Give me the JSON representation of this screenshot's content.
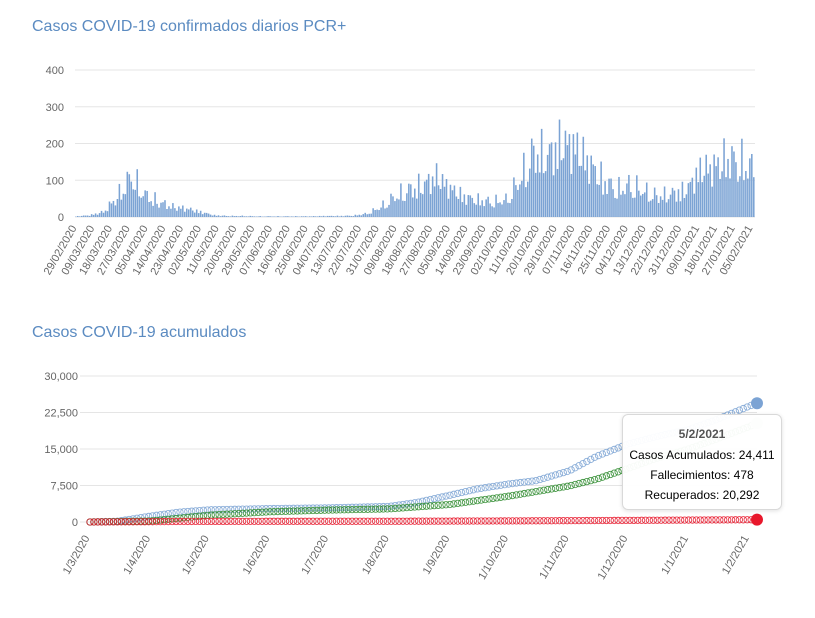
{
  "colors": {
    "daily_bars": "#7ba3d4",
    "total": "#7ba3d4",
    "deaths": "#e8172b",
    "recovered": "#2e8b2e",
    "grid": "#e5e5e5",
    "axis_text": "#666666",
    "title": "#5b8bc1"
  },
  "chart_data": [
    {
      "type": "bar",
      "title": "Casos COVID-19 confirmados diarios PCR+",
      "xlabel": "",
      "ylabel": "",
      "ylim": [
        0,
        400
      ],
      "yticks": [
        0,
        100,
        200,
        300,
        400
      ],
      "grid": true,
      "x_tick_labels": [
        "29/02/2020",
        "09/03/2020",
        "18/03/2020",
        "27/03/2020",
        "05/04/2020",
        "14/04/2020",
        "23/04/2020",
        "02/05/2020",
        "11/05/2020",
        "20/05/2020",
        "29/05/2020",
        "07/06/2020",
        "16/06/2020",
        "25/06/2020",
        "04/07/2020",
        "13/07/2020",
        "22/07/2020",
        "31/07/2020",
        "09/08/2020",
        "18/08/2020",
        "27/08/2020",
        "05/09/2020",
        "14/09/2020",
        "23/09/2020",
        "02/10/2020",
        "11/10/2020",
        "20/10/2020",
        "29/10/2020",
        "07/11/2020",
        "16/11/2020",
        "25/11/2020",
        "04/12/2020",
        "13/12/2020",
        "22/12/2020",
        "31/12/2020",
        "09/01/2021",
        "18/01/2021",
        "27/01/2021",
        "05/02/2021"
      ],
      "weekly_series": {
        "x_start": "29/02/2020",
        "x_end": "05/02/2021",
        "interval_days": 7,
        "values": [
          2,
          5,
          15,
          60,
          120,
          65,
          45,
          30,
          25,
          15,
          5,
          3,
          3,
          2,
          2,
          2,
          2,
          2,
          3,
          3,
          4,
          10,
          30,
          60,
          80,
          95,
          120,
          85,
          60,
          50,
          45,
          50,
          110,
          190,
          180,
          220,
          210,
          160,
          110,
          80,
          95,
          75,
          60,
          70,
          80,
          140,
          150,
          175,
          160,
          140
        ]
      }
    },
    {
      "type": "line",
      "title": "Casos COVID-19 acumulados",
      "xlabel": "",
      "ylabel": "",
      "ylim": [
        0,
        30000
      ],
      "yticks": [
        "0",
        "7,500",
        "15,000",
        "22,500",
        "30,000"
      ],
      "grid": true,
      "x_tick_labels": [
        "1/3/2020",
        "1/4/2020",
        "1/5/2020",
        "1/6/2020",
        "1/7/2020",
        "1/8/2020",
        "1/9/2020",
        "1/10/2020",
        "1/11/2020",
        "1/12/2020",
        "1/1/2021",
        "1/2/2021"
      ],
      "x_start": "1/3/2020",
      "x_end": "5/2/2021",
      "series": [
        {
          "name": "Casos Acumulados",
          "x": [
            "1/3/2020",
            "15/3/2020",
            "1/4/2020",
            "15/4/2020",
            "1/5/2020",
            "1/6/2020",
            "1/7/2020",
            "1/8/2020",
            "15/8/2020",
            "1/9/2020",
            "15/9/2020",
            "1/10/2020",
            "15/10/2020",
            "1/11/2020",
            "15/11/2020",
            "1/12/2020",
            "15/12/2020",
            "1/1/2021",
            "15/1/2021",
            "1/2/2021",
            "5/2/2021"
          ],
          "values": [
            0,
            150,
            1200,
            2000,
            2500,
            2750,
            2900,
            3200,
            4000,
            5500,
            6800,
            7800,
            8500,
            10500,
            13500,
            16000,
            17500,
            19000,
            21000,
            23800,
            24411
          ]
        },
        {
          "name": "Fallecimientos",
          "x": [
            "1/3/2020",
            "1/4/2020",
            "15/4/2020",
            "1/5/2020",
            "1/8/2020",
            "1/10/2020",
            "1/12/2020",
            "1/2/2021",
            "5/2/2021"
          ],
          "values": [
            0,
            60,
            110,
            130,
            150,
            220,
            330,
            460,
            478
          ]
        },
        {
          "name": "Recuperados",
          "x": [
            "1/3/2020",
            "1/4/2020",
            "1/5/2020",
            "1/6/2020",
            "1/7/2020",
            "1/8/2020",
            "1/9/2020",
            "1/10/2020",
            "1/11/2020",
            "15/11/2020",
            "1/12/2020",
            "15/12/2020",
            "1/1/2021",
            "15/1/2021",
            "1/2/2021",
            "5/2/2021"
          ],
          "values": [
            0,
            200,
            1400,
            2100,
            2450,
            2700,
            3600,
            5300,
            7400,
            8800,
            11000,
            13000,
            15000,
            17000,
            19600,
            20292
          ]
        }
      ],
      "tooltip": {
        "date": "5/2/2021",
        "total_label": "Casos Acumulados: 24,411",
        "deaths_label": "Fallecimientos: 478",
        "recovered_label": "Recuperados: 20,292"
      }
    }
  ]
}
